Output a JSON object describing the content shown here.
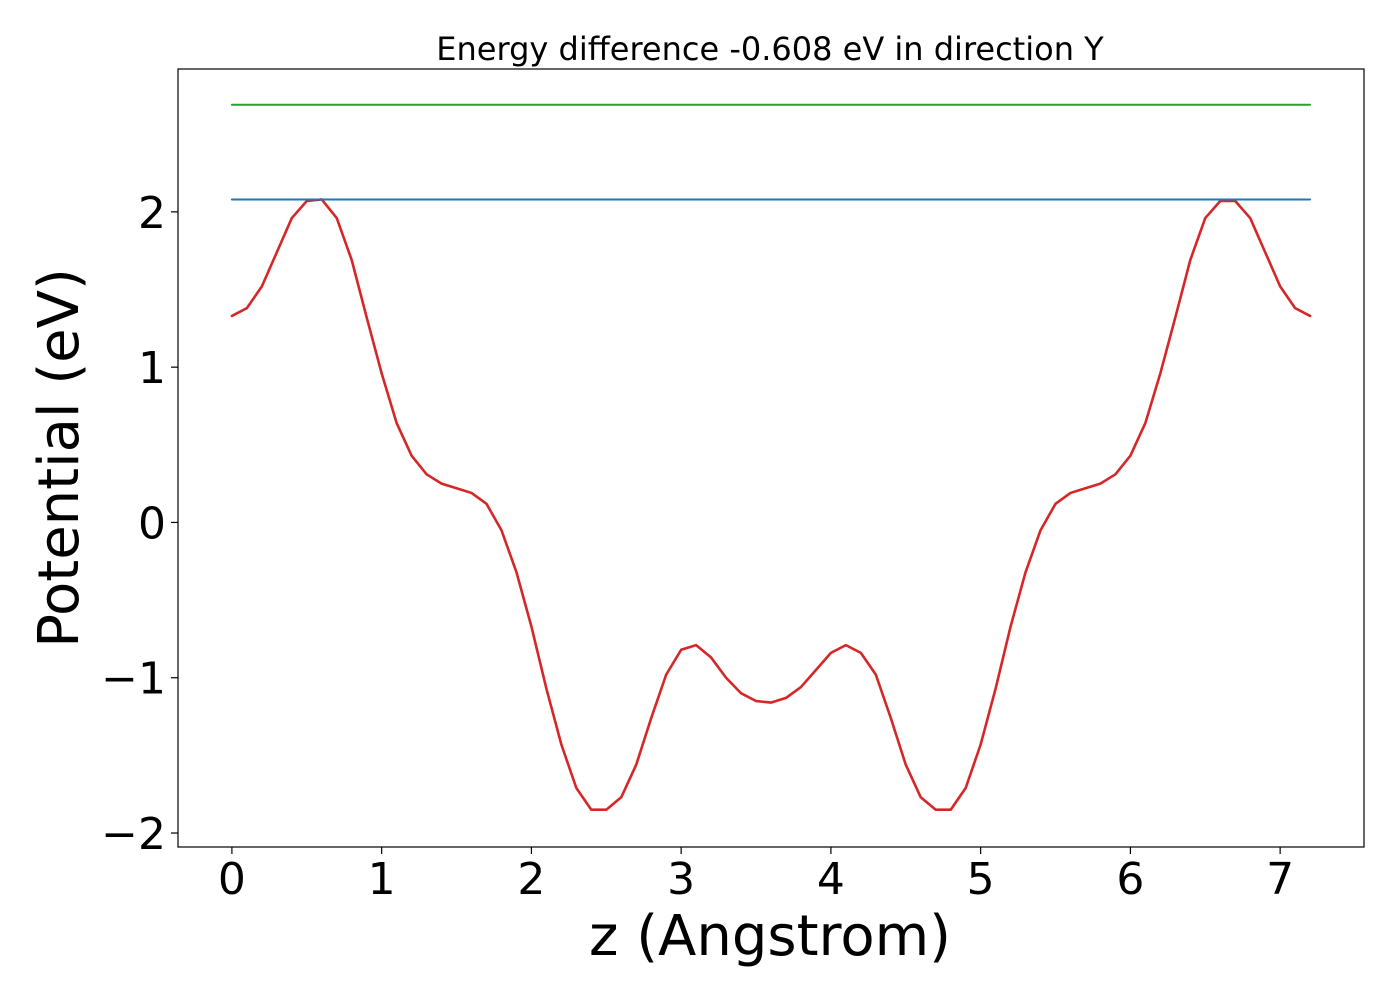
{
  "chart_data": {
    "type": "line",
    "title": "Energy difference -0.608 eV in direction Y",
    "xlabel": "z (Angstrom)",
    "ylabel": "Potential (eV)",
    "xlim": [
      -0.36,
      7.56
    ],
    "ylim": [
      -2.09,
      2.92
    ],
    "x_ticks": [
      0,
      1,
      2,
      3,
      4,
      5,
      6,
      7
    ],
    "x_tick_labels": [
      "0",
      "1",
      "2",
      "3",
      "4",
      "5",
      "6",
      "7"
    ],
    "y_ticks": [
      -2,
      -1,
      0,
      1,
      2
    ],
    "y_tick_labels": [
      "−2",
      "−1",
      "0",
      "1",
      "2"
    ],
    "grid": false,
    "series": [
      {
        "color": "#d62728",
        "x": [
          0.0,
          0.1,
          0.2,
          0.3,
          0.4,
          0.5,
          0.6,
          0.7,
          0.8,
          0.9,
          1.0,
          1.1,
          1.2,
          1.3,
          1.4,
          1.5,
          1.6,
          1.7,
          1.8,
          1.9,
          2.0,
          2.1,
          2.2,
          2.3,
          2.4,
          2.5,
          2.6,
          2.7,
          2.8,
          2.9,
          3.0,
          3.1,
          3.2,
          3.3,
          3.4,
          3.5,
          3.6,
          3.7,
          3.8,
          3.9,
          4.0,
          4.1,
          4.2,
          4.3,
          4.4,
          4.5,
          4.6,
          4.7,
          4.8,
          4.9,
          5.0,
          5.1,
          5.2,
          5.3,
          5.4,
          5.5,
          5.6,
          5.7,
          5.8,
          5.9,
          6.0,
          6.1,
          6.2,
          6.3,
          6.4,
          6.5,
          6.6,
          6.7,
          6.8,
          6.9,
          7.0,
          7.1,
          7.2
        ],
        "y": [
          1.33,
          1.38,
          1.52,
          1.74,
          1.96,
          2.07,
          2.08,
          1.96,
          1.69,
          1.32,
          0.96,
          0.64,
          0.43,
          0.31,
          0.25,
          0.22,
          0.19,
          0.12,
          -0.05,
          -0.32,
          -0.67,
          -1.07,
          -1.43,
          -1.71,
          -1.85,
          -1.85,
          -1.77,
          -1.56,
          -1.26,
          -0.98,
          -0.82,
          -0.79,
          -0.87,
          -1.0,
          -1.1,
          -1.15,
          -1.16,
          -1.13,
          -1.06,
          -0.95,
          -0.84,
          -0.79,
          -0.84,
          -0.98,
          -1.26,
          -1.56,
          -1.77,
          -1.85,
          -1.85,
          -1.71,
          -1.43,
          -1.07,
          -0.67,
          -0.32,
          -0.05,
          0.12,
          0.19,
          0.22,
          0.25,
          0.31,
          0.43,
          0.64,
          0.96,
          1.32,
          1.69,
          1.96,
          2.07,
          2.07,
          1.96,
          1.74,
          1.52,
          1.38,
          1.33
        ]
      },
      {
        "color": "#1f77b4",
        "x": [
          0.0,
          7.2
        ],
        "y": [
          2.08,
          2.08
        ]
      },
      {
        "color": "#2ca02c",
        "x": [
          0.0,
          7.2
        ],
        "y": [
          2.69,
          2.69
        ]
      }
    ]
  }
}
